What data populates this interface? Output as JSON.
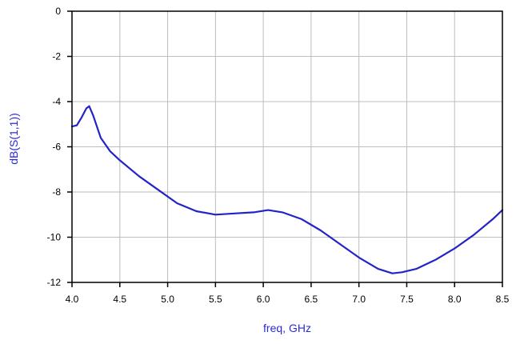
{
  "chart_data": {
    "type": "line",
    "title": "",
    "xlabel": "freq, GHz",
    "ylabel": "dB(S(1,1))",
    "xlim": [
      4.0,
      8.5
    ],
    "ylim": [
      -12,
      0
    ],
    "x_ticks": [
      "4.0",
      "4.5",
      "5.0",
      "5.5",
      "6.0",
      "6.5",
      "7.0",
      "7.5",
      "8.0",
      "8.5"
    ],
    "y_ticks": [
      "0",
      "-2",
      "-4",
      "-6",
      "-8",
      "-10",
      "-12"
    ],
    "grid": true,
    "label_color": "#2b2bd6",
    "line_color": "#2323c8",
    "series": [
      {
        "x": [
          4.0,
          4.05,
          4.1,
          4.15,
          4.18,
          4.22,
          4.3,
          4.4,
          4.5,
          4.7,
          4.9,
          5.1,
          5.3,
          5.5,
          5.7,
          5.9,
          6.05,
          6.2,
          6.4,
          6.6,
          6.8,
          7.0,
          7.2,
          7.35,
          7.45,
          7.6,
          7.8,
          8.0,
          8.2,
          8.4,
          8.5
        ],
        "y": [
          -5.1,
          -5.05,
          -4.7,
          -4.3,
          -4.2,
          -4.6,
          -5.6,
          -6.2,
          -6.6,
          -7.3,
          -7.9,
          -8.5,
          -8.85,
          -9.0,
          -8.95,
          -8.9,
          -8.8,
          -8.9,
          -9.2,
          -9.7,
          -10.3,
          -10.9,
          -11.4,
          -11.6,
          -11.55,
          -11.4,
          -11.0,
          -10.5,
          -9.9,
          -9.2,
          -8.8
        ]
      }
    ]
  }
}
